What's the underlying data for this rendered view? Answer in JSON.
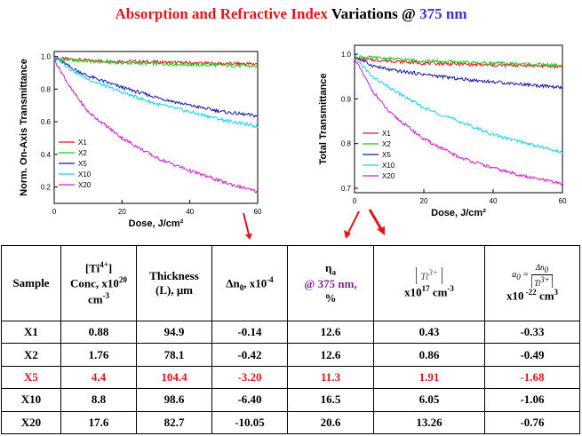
{
  "title": {
    "part1": "Absorption  and Refractive Index ",
    "part2": "Variations  @ ",
    "part3": "375 nm"
  },
  "chart_data": [
    {
      "type": "line",
      "xlabel": "Dose, J/cm²",
      "ylabel": "Norm. On-Axis Transmittance",
      "xlim": [
        0,
        60
      ],
      "ylim": [
        0.1,
        1.03
      ],
      "xticks": [
        0,
        20,
        40,
        60
      ],
      "yticks": [
        0.2,
        0.4,
        0.6,
        0.8,
        1.0
      ],
      "ytick_labels": [
        "0.2",
        "0.4",
        "0.6",
        "0.8",
        "1.0"
      ],
      "legend_position": "lower-left",
      "series": [
        {
          "name": "X1",
          "color": "#e8141a",
          "x": [
            0,
            10,
            20,
            30,
            40,
            50,
            60
          ],
          "y": [
            0.99,
            0.975,
            0.97,
            0.965,
            0.96,
            0.955,
            0.955
          ]
        },
        {
          "name": "X2",
          "color": "#1ec81e",
          "x": [
            0,
            10,
            20,
            30,
            40,
            50,
            60
          ],
          "y": [
            0.985,
            0.97,
            0.96,
            0.955,
            0.95,
            0.945,
            0.94
          ]
        },
        {
          "name": "X5",
          "color": "#1a1aa8",
          "x": [
            0,
            5,
            10,
            20,
            30,
            40,
            50,
            60
          ],
          "y": [
            1.0,
            0.93,
            0.88,
            0.81,
            0.75,
            0.7,
            0.66,
            0.635
          ]
        },
        {
          "name": "X10",
          "color": "#19d2e8",
          "x": [
            0,
            5,
            10,
            20,
            30,
            40,
            50,
            60
          ],
          "y": [
            1.0,
            0.92,
            0.86,
            0.78,
            0.71,
            0.66,
            0.61,
            0.57
          ]
        },
        {
          "name": "X20",
          "color": "#d21ed2",
          "x": [
            0,
            5,
            10,
            20,
            30,
            40,
            50,
            60
          ],
          "y": [
            0.98,
            0.8,
            0.66,
            0.5,
            0.38,
            0.3,
            0.23,
            0.17
          ]
        }
      ]
    },
    {
      "type": "line",
      "xlabel": "Dose, J/cm²",
      "ylabel": "Total Transmittance",
      "xlim": [
        0,
        60
      ],
      "ylim": [
        0.69,
        1.02
      ],
      "xticks": [
        0,
        20,
        40,
        60
      ],
      "yticks": [
        0.7,
        0.8,
        0.9,
        1.0
      ],
      "ytick_labels": [
        "0.7",
        "0.8",
        "0.9",
        "1.0"
      ],
      "legend_position": "lower-left",
      "series": [
        {
          "name": "X1",
          "color": "#e8141a",
          "x": [
            0,
            10,
            20,
            30,
            40,
            50,
            60
          ],
          "y": [
            0.99,
            0.985,
            0.98,
            0.978,
            0.975,
            0.975,
            0.972
          ]
        },
        {
          "name": "X2",
          "color": "#1ec81e",
          "x": [
            0,
            10,
            20,
            30,
            40,
            50,
            60
          ],
          "y": [
            0.995,
            0.99,
            0.985,
            0.982,
            0.98,
            0.978,
            0.975
          ]
        },
        {
          "name": "X5",
          "color": "#1a1aa8",
          "x": [
            0,
            5,
            10,
            20,
            30,
            40,
            50,
            60
          ],
          "y": [
            0.995,
            0.975,
            0.965,
            0.955,
            0.945,
            0.938,
            0.932,
            0.925
          ]
        },
        {
          "name": "X10",
          "color": "#19d2e8",
          "x": [
            0,
            5,
            10,
            20,
            30,
            40,
            50,
            60
          ],
          "y": [
            0.995,
            0.95,
            0.925,
            0.88,
            0.85,
            0.82,
            0.8,
            0.78
          ]
        },
        {
          "name": "X20",
          "color": "#d21ed2",
          "x": [
            0,
            5,
            10,
            20,
            30,
            40,
            50,
            60
          ],
          "y": [
            0.99,
            0.92,
            0.87,
            0.81,
            0.77,
            0.745,
            0.725,
            0.71
          ]
        }
      ]
    }
  ],
  "table": {
    "headers": {
      "sample": "Sample",
      "conc_a": "[Ti",
      "conc_sup": "4+",
      "conc_b": "]",
      "conc_c": "Conc, x10",
      "conc_sup2": "20",
      "conc_d": "cm",
      "conc_sup3": "-3",
      "thick_a": "Thickness",
      "thick_b": "(L), μm",
      "dn_a": "Δn",
      "dn_sub": "0",
      "dn_b": ", x10",
      "dn_sup": "-4",
      "eta_a": "η",
      "eta_sub": "a",
      "eta_b": "@ 375 nm,",
      "eta_c": "%",
      "ti_label": "Ti",
      "ti_sup": "3+",
      "ti_b": "x10",
      "ti_sup2": "17",
      "ti_c": " cm",
      "ti_sup3": "-3",
      "a_label": "a",
      "a_sub": "0",
      "a_eq": " =",
      "a_num": "Δn",
      "a_num_sub": "0",
      "a_den": "Ti",
      "a_den_sup": "3+",
      "a_b": "x10",
      "a_sup": " -22",
      "a_c": " cm",
      "a_sup2": "3"
    },
    "rows": [
      {
        "sample": "X1",
        "conc": "0.88",
        "thickness": "94.9",
        "dn": "-0.14",
        "eta": "12.6",
        "ti3": "0.43",
        "a0": "-0.33"
      },
      {
        "sample": "X2",
        "conc": "1.76",
        "thickness": "78.1",
        "dn": "-0.42",
        "eta": "12.6",
        "ti3": "0.86",
        "a0": "-0.49"
      },
      {
        "sample": "X5",
        "conc": "4.4",
        "thickness": "104.4",
        "dn": "-3.20",
        "eta": "11.3",
        "ti3": "1.91",
        "a0": "-1.68"
      },
      {
        "sample": "X10",
        "conc": "8.8",
        "thickness": "98.6",
        "dn": "-6.40",
        "eta": "16.5",
        "ti3": "6.05",
        "a0": "-1.06"
      },
      {
        "sample": "X20",
        "conc": "17.6",
        "thickness": "82.7",
        "dn": "-10.05",
        "eta": "20.6",
        "ti3": "13.26",
        "a0": "-0.76"
      }
    ]
  },
  "colors": {
    "title_red": "#e8141a",
    "title_blue": "#3a2ff0",
    "highlight_row": "#e8141a",
    "eta_purple": "#7b2a8c",
    "arrow": "#e8141a"
  }
}
